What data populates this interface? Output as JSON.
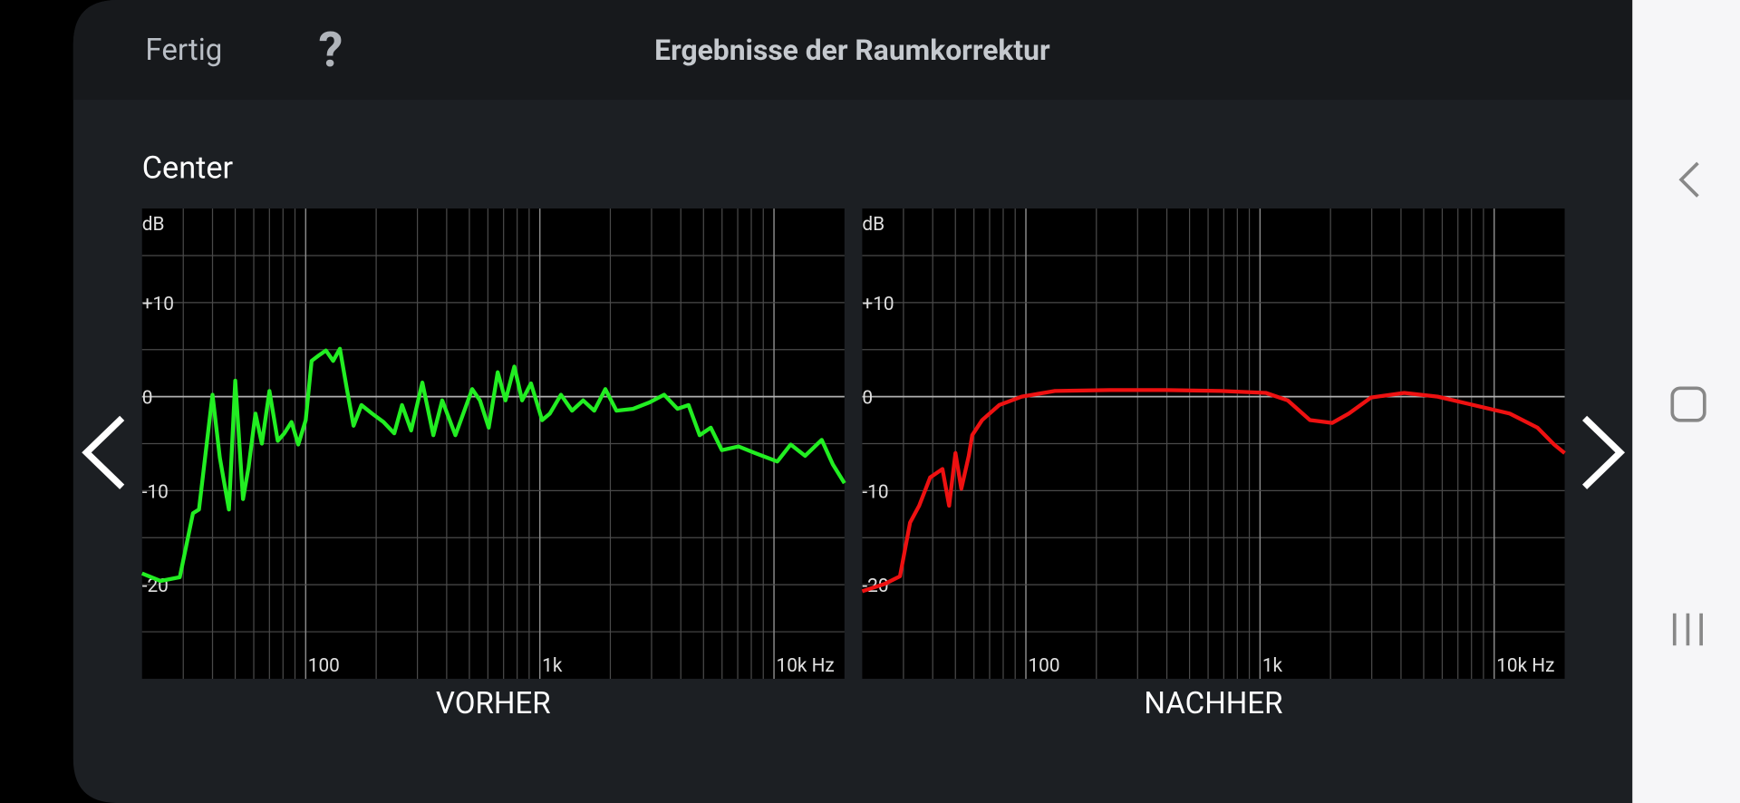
{
  "header": {
    "done": "Fertig",
    "help": "?",
    "title": "Ergebnisse der Raumkorrektur"
  },
  "channel": "Center",
  "chart_data": [
    {
      "type": "line",
      "xlabel": "VORHER",
      "ylabel": "dB",
      "xscale": "log",
      "xlim": [
        20,
        20000
      ],
      "ylim": [
        -30,
        20
      ],
      "xticks": [
        100,
        {
          "value": 1000,
          "label": "1k"
        },
        {
          "value": 10000,
          "label": "10k Hz"
        }
      ],
      "xminorticks": [
        30,
        40,
        50,
        60,
        70,
        80,
        90,
        200,
        300,
        400,
        500,
        600,
        700,
        800,
        900,
        2000,
        3000,
        4000,
        5000,
        6000,
        7000,
        8000,
        9000
      ],
      "yticks": [
        {
          "value": 10,
          "label": "+10"
        },
        0,
        -10,
        -20
      ],
      "yminorticks": [
        15,
        5,
        -5,
        -15,
        -25
      ],
      "grid": true,
      "series": [
        {
          "color": "#22ee22",
          "x": [
            20,
            24,
            29,
            33,
            35,
            40,
            43,
            47,
            50,
            54,
            57,
            61,
            65,
            70,
            76,
            81,
            87,
            93,
            100,
            106,
            114,
            122,
            131,
            140,
            150,
            160,
            173,
            192,
            215,
            239,
            258,
            282,
            315,
            351,
            383,
            436,
            514,
            555,
            605,
            661,
            713,
            778,
            840,
            917,
            1022,
            1104,
            1230,
            1372,
            1530,
            1707,
            1904,
            2124,
            2500,
            2946,
            3394,
            3870,
            4317,
            4815,
            5370,
            5988,
            7050,
            8300,
            10330,
            11780,
            13580,
            15990,
            17830,
            20000
          ],
          "values": [
            -18.8,
            -19.6,
            -19.2,
            -12.4,
            -12,
            0.2,
            -6.5,
            -12,
            1.7,
            -10.9,
            -7.5,
            -1.8,
            -5,
            0.6,
            -4.7,
            -3.9,
            -2.7,
            -5.1,
            -2.5,
            3.8,
            4.4,
            4.9,
            3.8,
            5.1,
            0.8,
            -3.1,
            -0.9,
            -1.8,
            -2.7,
            -3.9,
            -0.9,
            -3.6,
            1.5,
            -4.1,
            -0.4,
            -4.1,
            0.8,
            -0.4,
            -3.3,
            2.6,
            -0.4,
            3.2,
            -0.4,
            1.4,
            -2.5,
            -1.8,
            0.2,
            -1.5,
            -0.4,
            -1.5,
            0.8,
            -1.5,
            -1.3,
            -0.6,
            0.2,
            -1.3,
            -0.9,
            -4.1,
            -3.3,
            -5.7,
            -5.3,
            -6,
            -6.9,
            -5.1,
            -6.3,
            -4.6,
            -7.2,
            -9.2
          ]
        }
      ]
    },
    {
      "type": "line",
      "xlabel": "NACHHER",
      "ylabel": "dB",
      "xscale": "log",
      "xlim": [
        20,
        20000
      ],
      "ylim": [
        -30,
        20
      ],
      "xticks": [
        100,
        {
          "value": 1000,
          "label": "1k"
        },
        {
          "value": 10000,
          "label": "10k Hz"
        }
      ],
      "xminorticks": [
        30,
        40,
        50,
        60,
        70,
        80,
        90,
        200,
        300,
        400,
        500,
        600,
        700,
        800,
        900,
        2000,
        3000,
        4000,
        5000,
        6000,
        7000,
        8000,
        9000
      ],
      "yticks": [
        {
          "value": 10,
          "label": "+10"
        },
        0,
        -10,
        -20
      ],
      "yminorticks": [
        15,
        5,
        -5,
        -15,
        -25
      ],
      "grid": true,
      "series": [
        {
          "color": "#ee1111",
          "x": [
            20,
            25,
            29,
            32,
            35,
            39,
            44,
            47,
            50,
            53,
            57,
            59,
            65,
            77,
            96,
            133,
            229,
            396,
            682,
            1057,
            1313,
            1634,
            2032,
            2393,
            2979,
            4130,
            5730,
            7530,
            11650,
            15300,
            18030,
            20000
          ],
          "values": [
            -20.7,
            -19.9,
            -19.1,
            -13.4,
            -11.6,
            -8.6,
            -7.7,
            -11.6,
            -6,
            -9.8,
            -6.3,
            -4.1,
            -2.5,
            -0.9,
            0,
            0.6,
            0.7,
            0.7,
            0.6,
            0.4,
            -0.4,
            -2.5,
            -2.8,
            -1.8,
            -0.1,
            0.4,
            0,
            -0.7,
            -1.8,
            -3.3,
            -5.1,
            -6
          ]
        }
      ]
    }
  ]
}
